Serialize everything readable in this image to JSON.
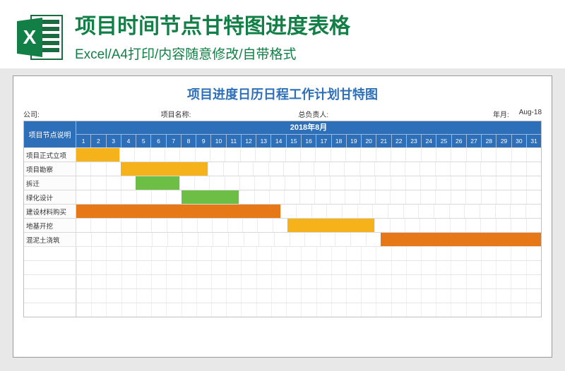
{
  "header": {
    "main_title": "项目时间节点甘特图进度表格",
    "sub_title": "Excel/A4打印/内容随意修改/自带格式"
  },
  "excel_icon": {
    "name": "excel-file-icon",
    "bg": "#ffffff",
    "dark": "#1A6B40",
    "accent": "#127F46",
    "label": "X"
  },
  "chart": {
    "type": "gantt",
    "title": "项目进度日历日程工作计划甘特图",
    "meta": {
      "company_label": "公司:",
      "project_label": "项目名称:",
      "owner_label": "总负责人:",
      "date_label": "年月:",
      "date_value": "Aug-18"
    },
    "row_header": "项目节点说明",
    "month_header": "2018年8月",
    "days": [
      1,
      2,
      3,
      4,
      5,
      6,
      7,
      8,
      9,
      10,
      11,
      12,
      13,
      14,
      15,
      16,
      17,
      18,
      19,
      20,
      21,
      22,
      23,
      24,
      25,
      26,
      27,
      28,
      29,
      30,
      31
    ],
    "colors": {
      "header_bg": "#2D6FB9",
      "yellow": "#F6B21B",
      "green": "#6CBE45",
      "orange": "#E67817",
      "grid": "#d9d9d9"
    },
    "tasks": [
      {
        "label": "项目正式立项",
        "start": 1,
        "end": 3,
        "color_key": "yellow"
      },
      {
        "label": "项目勘察",
        "start": 4,
        "end": 9,
        "color_key": "yellow"
      },
      {
        "label": "拆迁",
        "start": 5,
        "end": 7,
        "color_key": "green"
      },
      {
        "label": "绿化设计",
        "start": 8,
        "end": 11,
        "color_key": "green"
      },
      {
        "label": "建设材料购买",
        "start": 1,
        "end": 14,
        "color_key": "orange"
      },
      {
        "label": "地基开挖",
        "start": 15,
        "end": 20,
        "color_key": "yellow"
      },
      {
        "label": "混泥土浇筑",
        "start": 21,
        "end": 31,
        "color_key": "orange"
      }
    ],
    "extra_empty_rows": 5
  }
}
